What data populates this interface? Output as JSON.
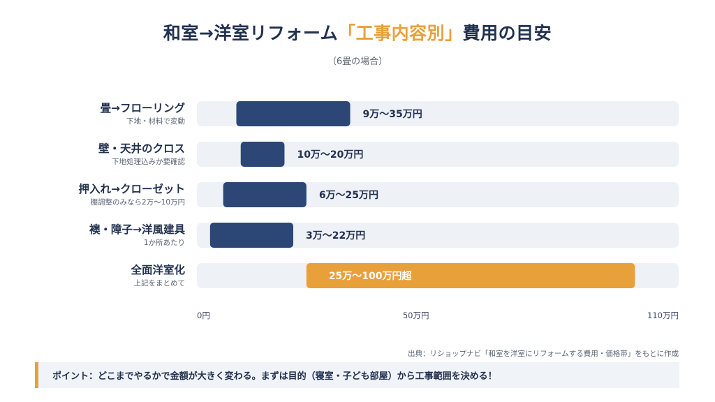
{
  "header": {
    "title_main": "和室→洋室リフォーム",
    "title_accent": "「工事内容別」",
    "title_end": "費用の目安",
    "subtitle": "（6畳の場合）"
  },
  "chart_data": {
    "type": "bar",
    "orientation": "horizontal",
    "xlim": [
      0,
      110
    ],
    "x_unit": "万円",
    "ticks": [
      {
        "value": 0,
        "label": "0円"
      },
      {
        "value": 50,
        "label": "50万円"
      },
      {
        "value": 110,
        "label": "110万円"
      }
    ],
    "rows": [
      {
        "label": "畳→フローリング",
        "note": "下地・材料で変動",
        "min": 9,
        "max": 35,
        "value_label": "9万〜35万円",
        "highlight": false
      },
      {
        "label": "壁・天井のクロス",
        "note": "下地処理込みか要確認",
        "min": 10,
        "max": 20,
        "value_label": "10万〜20万円",
        "highlight": false
      },
      {
        "label": "押入れ→クローゼット",
        "note": "棚調整のみなら2万〜10万円",
        "min": 6,
        "max": 25,
        "value_label": "6万〜25万円",
        "highlight": false
      },
      {
        "label": "襖・障子→洋風建具",
        "note": "1か所あたり",
        "min": 3,
        "max": 22,
        "value_label": "3万〜22万円",
        "highlight": false
      },
      {
        "label": "全面洋室化",
        "note": "上記をまとめて",
        "min": 25,
        "max": 100,
        "value_label": "25万〜100万円超",
        "highlight": true
      }
    ],
    "colors": {
      "bar": "#2c4775",
      "highlight": "#e8a03a",
      "track": "#eef1f6"
    }
  },
  "footer": {
    "source": "出典：リショップナビ「和室を洋室にリフォームする費用・価格帯」をもとに作成",
    "point": "ポイント：どこまでやるかで金額が大きく変わる。まずは目的（寝室・子ども部屋）から工事範囲を決める！"
  }
}
